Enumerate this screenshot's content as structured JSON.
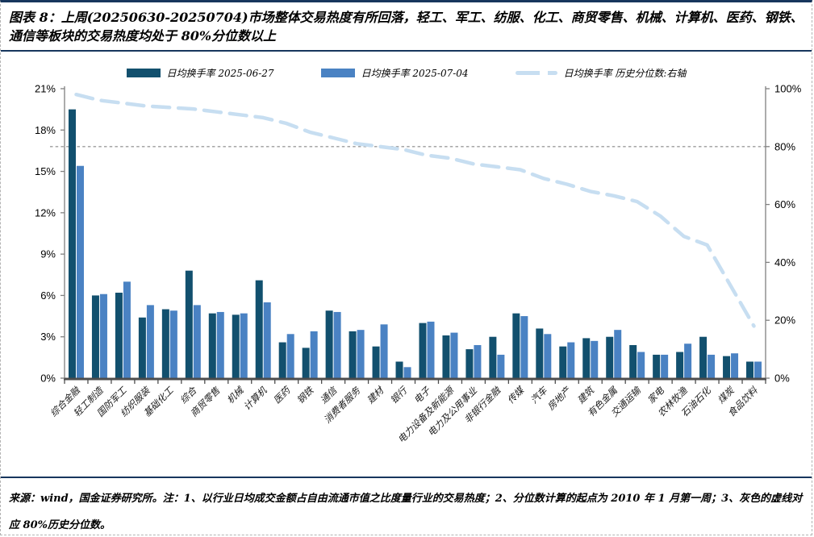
{
  "figure": {
    "title": "图表 8：上周(20250630-20250704)市场整体交易热度有所回落，轻工、军工、纺服、化工、商贸零售、机械、计算机、医药、钢铁、通信等板块的交易热度均处于 80%分位数以上",
    "footnote": "来源：wind，国金证券研究所。注：1、以行业日均成交金额占自由流通市值之比度量行业的交易热度；2、分位数计算的起点为 2010 年 1 月第一周；3、灰色的虚线对应 80%历史分位数。"
  },
  "legend": [
    {
      "label": "日均换手率 2025-06-27",
      "type": "bar",
      "color": "#12506e"
    },
    {
      "label": "日均换手率 2025-07-04",
      "type": "bar",
      "color": "#4a82c3"
    },
    {
      "label": "日均换手率 历史分位数:右轴",
      "type": "dashed-line",
      "color": "#c7def1"
    }
  ],
  "chart_data": {
    "type": "bar",
    "title": "",
    "categories": [
      "综合金融",
      "轻工制造",
      "国防军工",
      "纺织服装",
      "基础化工",
      "综合",
      "商贸零售",
      "机械",
      "计算机",
      "医药",
      "钢铁",
      "通信",
      "消费者服务",
      "建材",
      "银行",
      "电子",
      "电力设备及新能源",
      "电力及公用事业",
      "非银行金融",
      "传媒",
      "汽车",
      "房地产",
      "建筑",
      "有色金属",
      "交通运输",
      "家电",
      "农林牧渔",
      "石油石化",
      "煤炭",
      "食品饮料"
    ],
    "series": [
      {
        "name": "日均换手率 2025-06-27",
        "type": "bar",
        "axis": "left",
        "color": "#12506e",
        "values": [
          19.5,
          6.0,
          6.2,
          4.4,
          5.0,
          7.8,
          4.7,
          4.6,
          7.1,
          2.6,
          2.2,
          4.9,
          3.4,
          2.3,
          1.2,
          4.0,
          3.1,
          2.1,
          3.0,
          4.7,
          3.6,
          2.3,
          2.9,
          3.0,
          2.4,
          1.7,
          1.9,
          3.0,
          1.6,
          1.2
        ]
      },
      {
        "name": "日均换手率 2025-07-04",
        "type": "bar",
        "axis": "left",
        "color": "#4a82c3",
        "values": [
          15.4,
          6.1,
          7.0,
          5.3,
          4.9,
          5.3,
          4.8,
          4.7,
          5.5,
          3.2,
          3.4,
          4.8,
          3.5,
          3.9,
          0.8,
          4.1,
          3.3,
          2.4,
          1.7,
          4.5,
          3.2,
          2.6,
          2.7,
          3.5,
          1.9,
          1.7,
          2.5,
          1.7,
          1.8,
          1.2
        ]
      },
      {
        "name": "日均换手率 历史分位数:右轴",
        "type": "line",
        "axis": "right",
        "color": "#c7def1",
        "values": [
          98,
          96,
          95,
          94,
          93.5,
          93,
          92,
          91,
          90,
          88,
          85,
          83,
          81,
          80,
          79,
          77,
          76,
          74,
          73,
          72,
          69,
          67,
          64.5,
          63,
          61,
          56,
          49,
          46,
          32,
          18
        ]
      }
    ],
    "left_axis": {
      "min": 0,
      "max": 21,
      "step": 3,
      "labels": [
        "0%",
        "3%",
        "6%",
        "9%",
        "12%",
        "15%",
        "18%",
        "21%"
      ]
    },
    "right_axis": {
      "min": 0,
      "max": 100,
      "step": 20,
      "labels": [
        "0%",
        "20%",
        "40%",
        "60%",
        "80%",
        "100%"
      ]
    },
    "reference_line": {
      "axis": "right",
      "value": 80,
      "style": "dashed",
      "color": "#9c9c9c"
    },
    "grid": "off",
    "legend_position": "top"
  }
}
